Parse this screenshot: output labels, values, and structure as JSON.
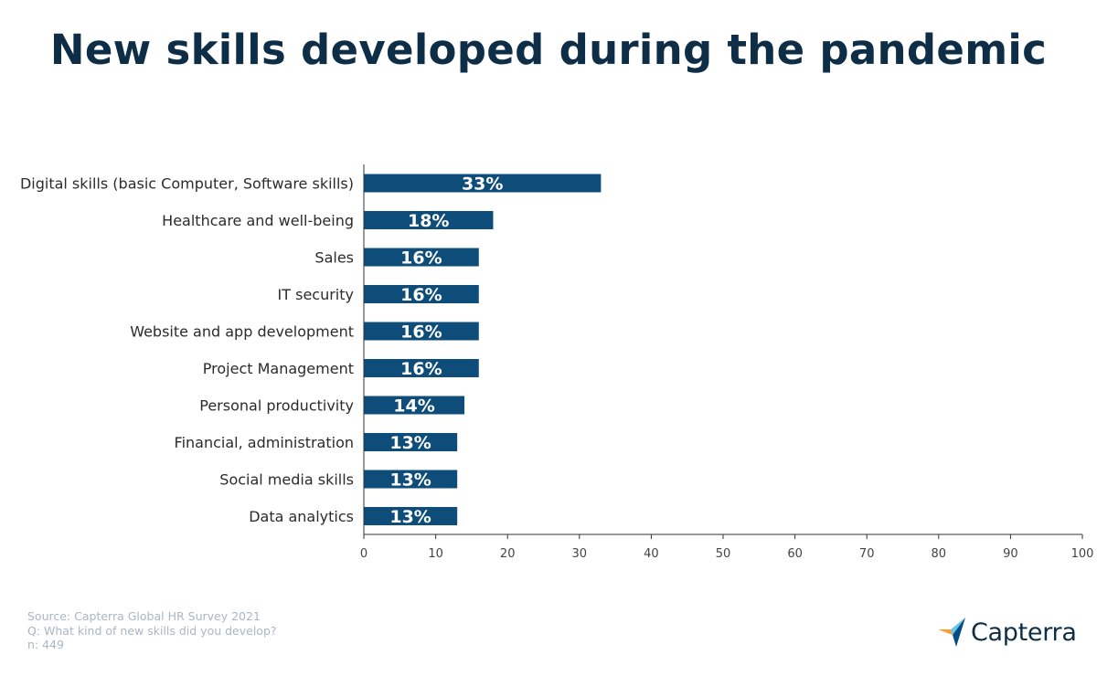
{
  "chart_data": {
    "type": "bar",
    "orientation": "horizontal",
    "title": "New skills developed during the pandemic",
    "categories": [
      "Digital skills (basic Computer, Software skills)",
      "Healthcare and well-being",
      "Sales",
      "IT security",
      "Website and app development",
      "Project Management",
      "Personal productivity",
      "Financial, administration",
      "Social media skills",
      "Data analytics"
    ],
    "values": [
      33,
      18,
      16,
      16,
      16,
      16,
      14,
      13,
      13,
      13
    ],
    "data_labels": [
      "33%",
      "18%",
      "16%",
      "16%",
      "16%",
      "16%",
      "14%",
      "13%",
      "13%",
      "13%"
    ],
    "xlim": [
      0,
      100
    ],
    "xticks": [
      "0",
      "10",
      "20",
      "30",
      "40",
      "50",
      "60",
      "70",
      "80",
      "90",
      "100"
    ],
    "xlabel": "",
    "ylabel": "",
    "grid": false,
    "bar_color": "#0e4c7a"
  },
  "footer": {
    "source": "Source: Capterra Global HR Survey 2021",
    "question": "Q: What kind of new skills did you develop?",
    "sample": "n: 449"
  },
  "logo": {
    "text": "Capterra",
    "icon": "capterra-arrow-icon",
    "colors": [
      "#ff9d28",
      "#68c5ed",
      "#044d80",
      "#e54747"
    ]
  }
}
